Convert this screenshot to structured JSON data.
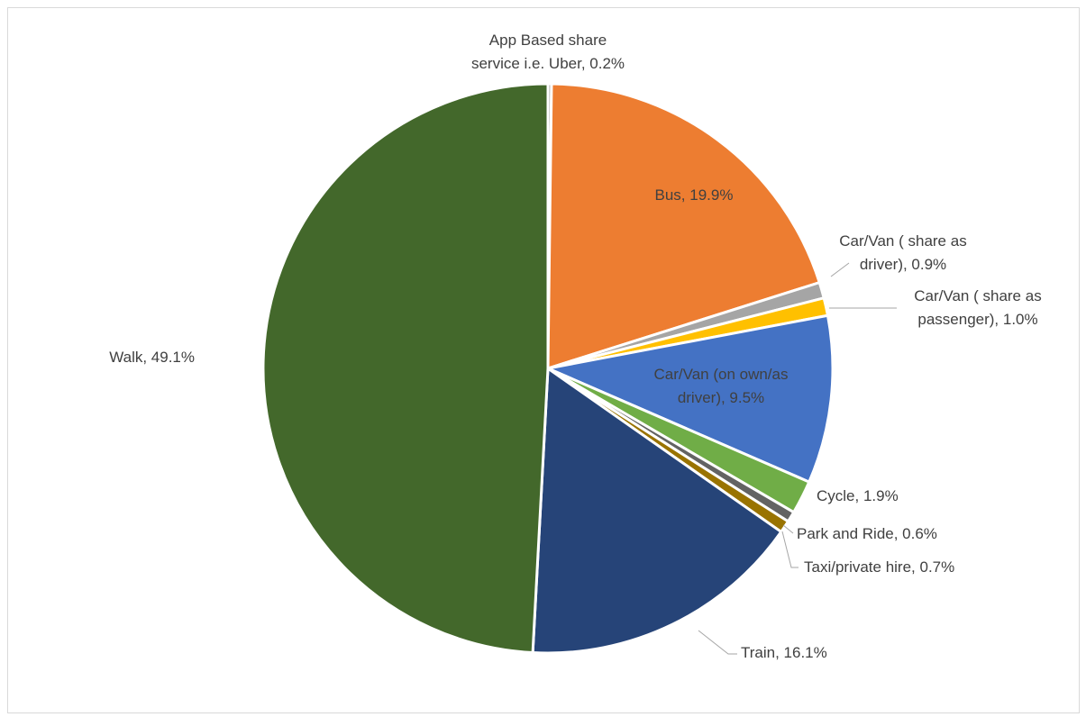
{
  "chart_data": {
    "type": "pie",
    "title": "",
    "slices": [
      {
        "label": "App Based share service i.e. Uber",
        "value": 0.2,
        "display": "App Based share service i.e. Uber, 0.2%",
        "color": "#a5a5a5"
      },
      {
        "label": "Bus",
        "value": 19.9,
        "display": "Bus, 19.9%",
        "color": "#ed7d31"
      },
      {
        "label": "Car/Van ( share as driver)",
        "value": 0.9,
        "display": "Car/Van ( share as driver), 0.9%",
        "color": "#a5a5a5"
      },
      {
        "label": "Car/Van ( share as passenger)",
        "value": 1.0,
        "display": "Car/Van ( share as passenger), 1.0%",
        "color": "#ffc000"
      },
      {
        "label": "Car/Van (on own/as driver)",
        "value": 9.5,
        "display": "Car/Van (on own/as driver), 9.5%",
        "color": "#4472c4"
      },
      {
        "label": "Cycle",
        "value": 1.9,
        "display": "Cycle, 1.9%",
        "color": "#70ad47"
      },
      {
        "label": "Park and Ride",
        "value": 0.6,
        "display": "Park and Ride, 0.6%",
        "color": "#636363"
      },
      {
        "label": "Taxi/private hire",
        "value": 0.7,
        "display": "Taxi/private hire, 0.7%",
        "color": "#997300"
      },
      {
        "label": "Train",
        "value": 16.1,
        "display": "Train, 16.1%",
        "color": "#264478"
      },
      {
        "label": "Walk",
        "value": 49.1,
        "display": "Walk, 49.1%",
        "color": "#43682b"
      }
    ]
  }
}
